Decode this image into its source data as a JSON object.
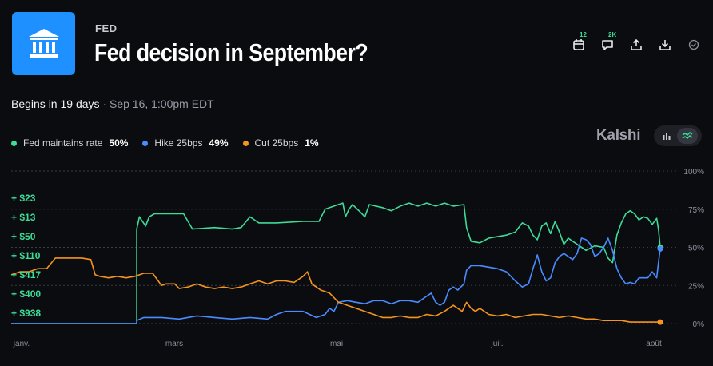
{
  "header": {
    "category": "FED",
    "title": "Fed decision in September?",
    "logo_icon": "bank-icon",
    "logo_color": "#1e90ff"
  },
  "actions": [
    {
      "name": "calendar-icon",
      "badge": "12"
    },
    {
      "name": "comment-icon",
      "badge": "2K"
    },
    {
      "name": "share-icon",
      "badge": ""
    },
    {
      "name": "download-icon",
      "badge": ""
    },
    {
      "name": "check-circle-icon",
      "badge": ""
    }
  ],
  "status": {
    "begins": "Begins in 19 days",
    "separator": " · ",
    "date": "Sep 16, 1:00pm EDT"
  },
  "legend": [
    {
      "label": "Fed maintains rate",
      "pct": "50%",
      "color": "#3ddc97"
    },
    {
      "label": "Hike 25bps",
      "pct": "49%",
      "color": "#4a8cff"
    },
    {
      "label": "Cut 25bps",
      "pct": "1%",
      "color": "#f5941e"
    }
  ],
  "brand": "Kalshi",
  "view_toggle": {
    "options": [
      "bar-chart-icon",
      "line-chart-icon"
    ],
    "selected": "line-chart-icon"
  },
  "trades": [
    "+ $23",
    "+ $13",
    "+ $50",
    "+ $110",
    "+ $417",
    "+ $400",
    "+ $938"
  ],
  "chart_data": {
    "type": "line",
    "x_ticks": [
      "janv.",
      "mars",
      "mai",
      "juil.",
      "août"
    ],
    "x_tick_pos": [
      0,
      2,
      4,
      6,
      7
    ],
    "xlim": [
      0,
      7.1
    ],
    "y_ticks": [
      "100%",
      "75%",
      "50%",
      "25%",
      "0%"
    ],
    "ylim": [
      0,
      100
    ],
    "grid": true,
    "series": [
      {
        "name": "Fed maintains rate",
        "color": "#3ddc97",
        "points": [
          [
            0,
            0
          ],
          [
            1.42,
            0
          ],
          [
            1.42,
            62
          ],
          [
            1.45,
            70
          ],
          [
            1.52,
            64
          ],
          [
            1.56,
            70
          ],
          [
            1.62,
            72
          ],
          [
            1.8,
            72
          ],
          [
            1.95,
            72
          ],
          [
            2.05,
            62
          ],
          [
            2.3,
            63
          ],
          [
            2.5,
            62
          ],
          [
            2.6,
            63
          ],
          [
            2.7,
            70
          ],
          [
            2.8,
            66
          ],
          [
            3.0,
            66
          ],
          [
            3.3,
            67
          ],
          [
            3.48,
            67
          ],
          [
            3.55,
            75
          ],
          [
            3.65,
            77
          ],
          [
            3.75,
            79
          ],
          [
            3.78,
            70
          ],
          [
            3.82,
            75
          ],
          [
            3.86,
            78
          ],
          [
            3.95,
            73
          ],
          [
            4.0,
            70
          ],
          [
            4.05,
            78
          ],
          [
            4.2,
            76
          ],
          [
            4.3,
            74
          ],
          [
            4.4,
            77
          ],
          [
            4.5,
            79
          ],
          [
            4.6,
            77
          ],
          [
            4.7,
            79
          ],
          [
            4.8,
            77
          ],
          [
            4.9,
            79
          ],
          [
            5.0,
            77
          ],
          [
            5.12,
            78
          ],
          [
            5.15,
            63
          ],
          [
            5.2,
            54
          ],
          [
            5.3,
            53
          ],
          [
            5.4,
            56
          ],
          [
            5.5,
            57
          ],
          [
            5.6,
            58
          ],
          [
            5.7,
            60
          ],
          [
            5.78,
            66
          ],
          [
            5.85,
            64
          ],
          [
            5.9,
            58
          ],
          [
            5.95,
            55
          ],
          [
            6.0,
            64
          ],
          [
            6.05,
            66
          ],
          [
            6.1,
            59
          ],
          [
            6.15,
            67
          ],
          [
            6.2,
            60
          ],
          [
            6.25,
            52
          ],
          [
            6.3,
            56
          ],
          [
            6.4,
            52
          ],
          [
            6.5,
            48
          ],
          [
            6.6,
            51
          ],
          [
            6.7,
            50
          ],
          [
            6.75,
            43
          ],
          [
            6.8,
            40
          ],
          [
            6.85,
            58
          ],
          [
            6.9,
            66
          ],
          [
            6.95,
            72
          ],
          [
            7.0,
            74
          ],
          [
            7.05,
            72
          ],
          [
            7.1,
            68
          ],
          [
            7.15,
            70
          ],
          [
            7.2,
            69
          ],
          [
            7.25,
            65
          ],
          [
            7.3,
            69
          ],
          [
            7.32,
            62
          ],
          [
            7.34,
            50
          ]
        ]
      },
      {
        "name": "Hike 25bps",
        "color": "#4a8cff",
        "points": [
          [
            0,
            0
          ],
          [
            1.42,
            0
          ],
          [
            1.42,
            2
          ],
          [
            1.5,
            4
          ],
          [
            1.7,
            4
          ],
          [
            1.9,
            3
          ],
          [
            2.1,
            5
          ],
          [
            2.3,
            4
          ],
          [
            2.5,
            3
          ],
          [
            2.7,
            4
          ],
          [
            2.9,
            3
          ],
          [
            3.0,
            6
          ],
          [
            3.1,
            8
          ],
          [
            3.3,
            8
          ],
          [
            3.45,
            4
          ],
          [
            3.55,
            6
          ],
          [
            3.6,
            10
          ],
          [
            3.65,
            8
          ],
          [
            3.7,
            14
          ],
          [
            3.8,
            15
          ],
          [
            3.9,
            14
          ],
          [
            4.0,
            13
          ],
          [
            4.1,
            15
          ],
          [
            4.2,
            15
          ],
          [
            4.3,
            13
          ],
          [
            4.4,
            15
          ],
          [
            4.5,
            15
          ],
          [
            4.6,
            14
          ],
          [
            4.7,
            18
          ],
          [
            4.75,
            20
          ],
          [
            4.8,
            14
          ],
          [
            4.85,
            12
          ],
          [
            4.9,
            14
          ],
          [
            4.95,
            22
          ],
          [
            5.0,
            24
          ],
          [
            5.05,
            22
          ],
          [
            5.12,
            26
          ],
          [
            5.15,
            35
          ],
          [
            5.2,
            38
          ],
          [
            5.3,
            38
          ],
          [
            5.4,
            37
          ],
          [
            5.5,
            36
          ],
          [
            5.6,
            34
          ],
          [
            5.7,
            28
          ],
          [
            5.78,
            24
          ],
          [
            5.85,
            26
          ],
          [
            5.9,
            36
          ],
          [
            5.95,
            45
          ],
          [
            6.0,
            34
          ],
          [
            6.05,
            28
          ],
          [
            6.1,
            30
          ],
          [
            6.15,
            40
          ],
          [
            6.2,
            44
          ],
          [
            6.25,
            46
          ],
          [
            6.3,
            44
          ],
          [
            6.35,
            42
          ],
          [
            6.4,
            46
          ],
          [
            6.45,
            56
          ],
          [
            6.5,
            55
          ],
          [
            6.55,
            52
          ],
          [
            6.6,
            44
          ],
          [
            6.65,
            46
          ],
          [
            6.7,
            50
          ],
          [
            6.75,
            56
          ],
          [
            6.8,
            48
          ],
          [
            6.85,
            36
          ],
          [
            6.9,
            30
          ],
          [
            6.95,
            26
          ],
          [
            7.0,
            27
          ],
          [
            7.05,
            26
          ],
          [
            7.1,
            30
          ],
          [
            7.2,
            30
          ],
          [
            7.25,
            34
          ],
          [
            7.3,
            30
          ],
          [
            7.32,
            40
          ],
          [
            7.34,
            49
          ]
        ]
      },
      {
        "name": "Cut 25bps",
        "color": "#f5941e",
        "points": [
          [
            0,
            32
          ],
          [
            0.1,
            34
          ],
          [
            0.2,
            34
          ],
          [
            0.3,
            36
          ],
          [
            0.4,
            36
          ],
          [
            0.5,
            43
          ],
          [
            0.8,
            43
          ],
          [
            0.9,
            42
          ],
          [
            0.95,
            32
          ],
          [
            1.0,
            31
          ],
          [
            1.1,
            30
          ],
          [
            1.2,
            31
          ],
          [
            1.3,
            30
          ],
          [
            1.4,
            31
          ],
          [
            1.5,
            33
          ],
          [
            1.6,
            33
          ],
          [
            1.7,
            25
          ],
          [
            1.75,
            26
          ],
          [
            1.85,
            26
          ],
          [
            1.9,
            23
          ],
          [
            2.0,
            24
          ],
          [
            2.1,
            26
          ],
          [
            2.2,
            24
          ],
          [
            2.3,
            23
          ],
          [
            2.4,
            24
          ],
          [
            2.5,
            23
          ],
          [
            2.6,
            24
          ],
          [
            2.7,
            26
          ],
          [
            2.8,
            28
          ],
          [
            2.9,
            26
          ],
          [
            3.0,
            28
          ],
          [
            3.1,
            28
          ],
          [
            3.2,
            27
          ],
          [
            3.3,
            31
          ],
          [
            3.35,
            34
          ],
          [
            3.4,
            26
          ],
          [
            3.5,
            22
          ],
          [
            3.6,
            20
          ],
          [
            3.7,
            14
          ],
          [
            3.8,
            12
          ],
          [
            3.9,
            10
          ],
          [
            4.0,
            8
          ],
          [
            4.1,
            6
          ],
          [
            4.2,
            4
          ],
          [
            4.3,
            4
          ],
          [
            4.4,
            5
          ],
          [
            4.5,
            4
          ],
          [
            4.6,
            4
          ],
          [
            4.7,
            6
          ],
          [
            4.8,
            5
          ],
          [
            4.9,
            8
          ],
          [
            5.0,
            12
          ],
          [
            5.1,
            8
          ],
          [
            5.15,
            14
          ],
          [
            5.2,
            10
          ],
          [
            5.25,
            8
          ],
          [
            5.3,
            10
          ],
          [
            5.4,
            6
          ],
          [
            5.5,
            5
          ],
          [
            5.6,
            6
          ],
          [
            5.7,
            4
          ],
          [
            5.8,
            5
          ],
          [
            5.9,
            6
          ],
          [
            6.0,
            6
          ],
          [
            6.1,
            5
          ],
          [
            6.2,
            4
          ],
          [
            6.3,
            5
          ],
          [
            6.4,
            4
          ],
          [
            6.5,
            3
          ],
          [
            6.6,
            3
          ],
          [
            6.7,
            2
          ],
          [
            6.8,
            2
          ],
          [
            6.9,
            2
          ],
          [
            7.0,
            1
          ],
          [
            7.1,
            1
          ],
          [
            7.2,
            1
          ],
          [
            7.34,
            1
          ]
        ]
      }
    ]
  }
}
